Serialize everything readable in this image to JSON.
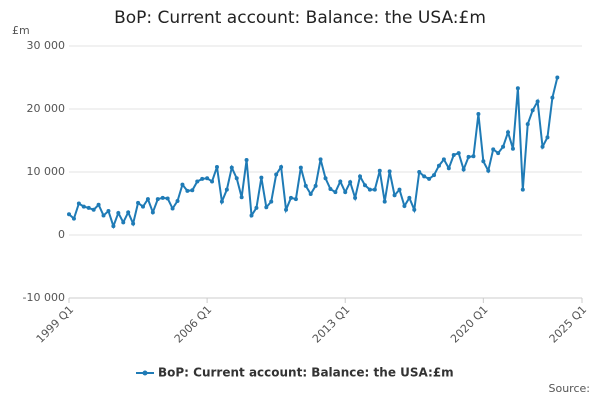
{
  "chart_data": {
    "type": "line",
    "title": "BoP: Current account: Balance: the USA:£m",
    "y_label": "£m",
    "source": "Source:",
    "categories": [
      "1999 Q1",
      "1999 Q2",
      "1999 Q3",
      "1999 Q4",
      "2000 Q1",
      "2000 Q2",
      "2000 Q3",
      "2000 Q4",
      "2001 Q1",
      "2001 Q2",
      "2001 Q3",
      "2001 Q4",
      "2002 Q1",
      "2002 Q2",
      "2002 Q3",
      "2002 Q4",
      "2003 Q1",
      "2003 Q2",
      "2003 Q3",
      "2003 Q4",
      "2004 Q1",
      "2004 Q2",
      "2004 Q3",
      "2004 Q4",
      "2005 Q1",
      "2005 Q2",
      "2005 Q3",
      "2005 Q4",
      "2006 Q1",
      "2006 Q2",
      "2006 Q3",
      "2006 Q4",
      "2007 Q1",
      "2007 Q2",
      "2007 Q3",
      "2007 Q4",
      "2008 Q1",
      "2008 Q2",
      "2008 Q3",
      "2008 Q4",
      "2009 Q1",
      "2009 Q2",
      "2009 Q3",
      "2009 Q4",
      "2010 Q1",
      "2010 Q2",
      "2010 Q3",
      "2010 Q4",
      "2011 Q1",
      "2011 Q2",
      "2011 Q3",
      "2011 Q4",
      "2012 Q1",
      "2012 Q2",
      "2012 Q3",
      "2012 Q4",
      "2013 Q1",
      "2013 Q2",
      "2013 Q3",
      "2013 Q4",
      "2014 Q1",
      "2014 Q2",
      "2014 Q3",
      "2014 Q4",
      "2015 Q1",
      "2015 Q2",
      "2015 Q3",
      "2015 Q4",
      "2016 Q1",
      "2016 Q2",
      "2016 Q3",
      "2016 Q4",
      "2017 Q1",
      "2017 Q2",
      "2017 Q3",
      "2017 Q4",
      "2018 Q1",
      "2018 Q2",
      "2018 Q3",
      "2018 Q4",
      "2019 Q1",
      "2019 Q2",
      "2019 Q3",
      "2019 Q4",
      "2020 Q1",
      "2020 Q2",
      "2020 Q3",
      "2020 Q4",
      "2021 Q1",
      "2021 Q2",
      "2021 Q3",
      "2021 Q4",
      "2022 Q1",
      "2022 Q2",
      "2022 Q3",
      "2022 Q4",
      "2023 Q1",
      "2023 Q2",
      "2023 Q3",
      "2023 Q4"
    ],
    "series": [
      {
        "name": "BoP: Current account: Balance: the USA:£m",
        "color": "#1f7bb6",
        "values": [
          3300,
          2600,
          5000,
          4500,
          4300,
          4000,
          4800,
          3100,
          3800,
          1400,
          3500,
          2000,
          3600,
          1800,
          5100,
          4500,
          5700,
          3600,
          5700,
          5900,
          5800,
          4200,
          5400,
          8000,
          7000,
          7100,
          8500,
          8900,
          9000,
          8500,
          10800,
          5300,
          7200,
          10700,
          9000,
          6000,
          11900,
          3100,
          4300,
          9100,
          4400,
          5300,
          9600,
          10800,
          4000,
          5900,
          5700,
          10700,
          7800,
          6500,
          7800,
          12000,
          9000,
          7300,
          6800,
          8500,
          6800,
          8400,
          5900,
          9300,
          7900,
          7200,
          7200,
          10200,
          5300,
          10100,
          6300,
          7200,
          4600,
          5900,
          4000,
          10000,
          9300,
          8900,
          9500,
          11000,
          12000,
          10600,
          12700,
          13000,
          10400,
          12400,
          12500,
          19200,
          11700,
          10200,
          13600,
          13000,
          14000,
          16300,
          13700,
          23300,
          7200,
          17600,
          19800,
          21200,
          14000,
          15500,
          21800,
          25000
        ]
      }
    ],
    "xlim": [
      "1999 Q1",
      "2025 Q1"
    ],
    "xticks": [
      "1999 Q1",
      "2006 Q1",
      "2013 Q1",
      "2020 Q1",
      "2025 Q1"
    ],
    "ylim": [
      -10000,
      30000
    ],
    "yticks": [
      {
        "value": -10000,
        "label": "-10 000"
      },
      0,
      {
        "value": 10000,
        "label": "10 000"
      },
      {
        "value": 20000,
        "label": "20 000"
      },
      {
        "value": 30000,
        "label": "30 000"
      }
    ],
    "grid": true,
    "legend": "bottom"
  }
}
